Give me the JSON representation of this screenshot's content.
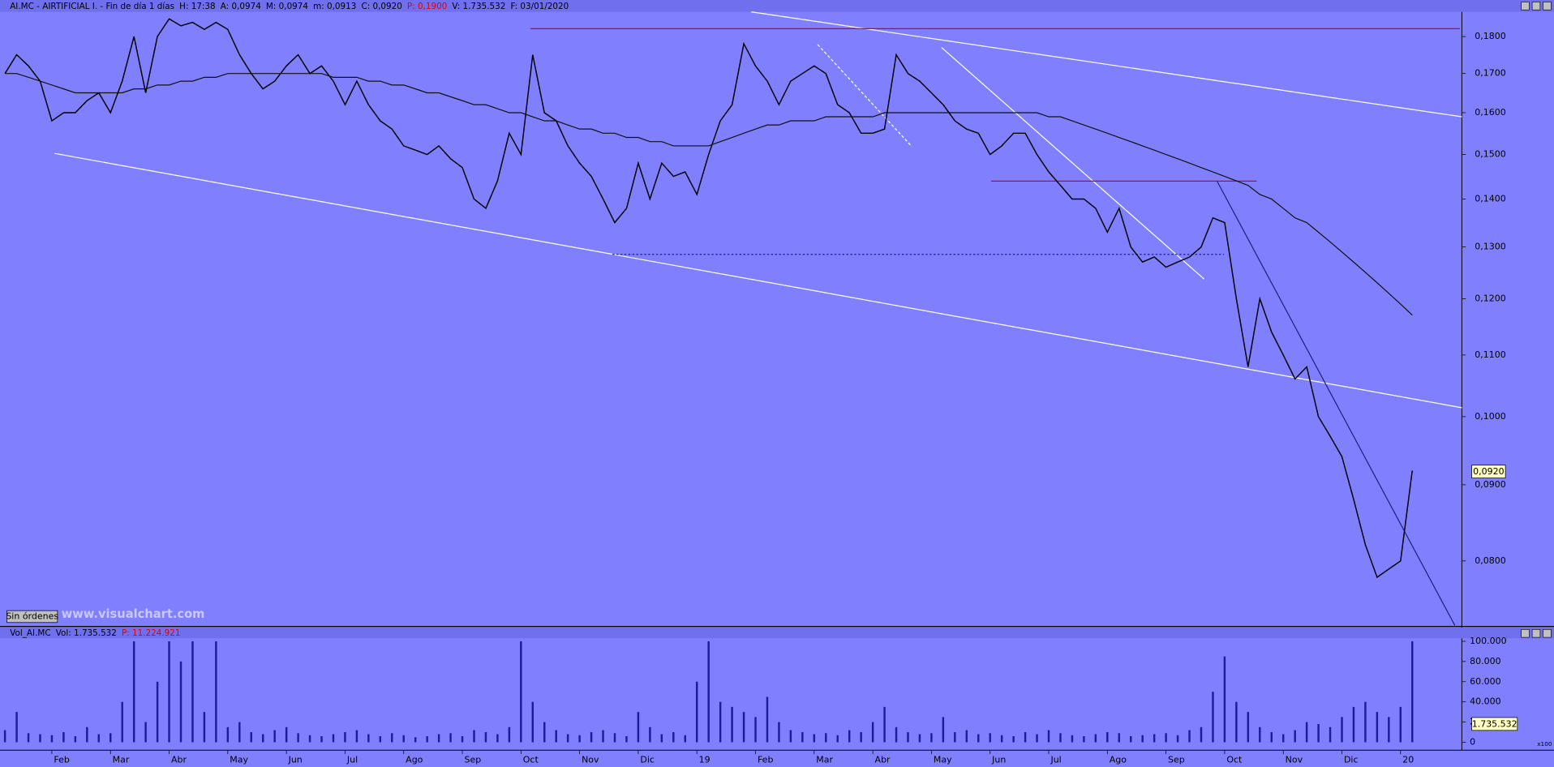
{
  "header": {
    "fields": [
      "AI.MC - AIRTIFICIAL I. - Fin de día 1 días",
      "H: 17:38",
      "A: 0,0974",
      "M: 0,0974",
      "m: 0,0913",
      "C: 0,0920",
      "P: 0,1900",
      "V: 1.735.532",
      "F: 03/01/2020"
    ],
    "last_price": "0,0920",
    "button": "Sin órdenes",
    "watermark": "www.visualchart.com"
  },
  "volume_header": {
    "fields": [
      "Vol_AI.MC",
      "Vol: 1.735.532",
      "P: 11.224.921"
    ],
    "last_volume": "1.735.532",
    "unit": "x100"
  },
  "chart_data": {
    "type": "line",
    "log_scale": true,
    "categories": [
      null,
      null,
      null,
      null,
      "Feb",
      null,
      null,
      null,
      null,
      "Mar",
      null,
      null,
      null,
      null,
      "Abr",
      null,
      null,
      null,
      null,
      "May",
      null,
      null,
      null,
      null,
      "Jun",
      null,
      null,
      null,
      null,
      "Jul",
      null,
      null,
      null,
      null,
      "Ago",
      null,
      null,
      null,
      null,
      "Sep",
      null,
      null,
      null,
      null,
      "Oct",
      null,
      null,
      null,
      null,
      "Nov",
      null,
      null,
      null,
      null,
      "Dic",
      null,
      null,
      null,
      null,
      "19",
      null,
      null,
      null,
      null,
      "Feb",
      null,
      null,
      null,
      null,
      "Mar",
      null,
      null,
      null,
      null,
      "Abr",
      null,
      null,
      null,
      null,
      "May",
      null,
      null,
      null,
      null,
      "Jun",
      null,
      null,
      null,
      null,
      "Jul",
      null,
      null,
      null,
      null,
      "Ago",
      null,
      null,
      null,
      null,
      "Sep",
      null,
      null,
      null,
      null,
      "Oct",
      null,
      null,
      null,
      null,
      "Nov",
      null,
      null,
      null,
      null,
      "Dic",
      null,
      null,
      null,
      null,
      "20",
      null
    ],
    "series": [
      {
        "color": "#000000",
        "values": [
          0.17,
          0.175,
          0.172,
          0.168,
          0.158,
          0.16,
          0.16,
          0.163,
          0.165,
          0.16,
          0.168,
          0.18,
          0.165,
          0.18,
          0.185,
          0.183,
          0.184,
          0.182,
          0.184,
          0.182,
          0.175,
          0.17,
          0.166,
          0.168,
          0.172,
          0.175,
          0.17,
          0.172,
          0.168,
          0.162,
          0.168,
          0.162,
          0.158,
          0.156,
          0.152,
          0.151,
          0.15,
          0.152,
          0.149,
          0.147,
          0.14,
          0.138,
          0.144,
          0.155,
          0.15,
          0.175,
          0.16,
          0.158,
          0.152,
          0.148,
          0.145,
          0.14,
          0.135,
          0.138,
          0.148,
          0.14,
          0.148,
          0.145,
          0.146,
          0.141,
          0.15,
          0.158,
          0.162,
          0.178,
          0.172,
          0.168,
          0.162,
          0.168,
          0.17,
          0.172,
          0.17,
          0.162,
          0.16,
          0.155,
          0.155,
          0.156,
          0.175,
          0.17,
          0.168,
          0.165,
          0.162,
          0.158,
          0.156,
          0.155,
          0.15,
          0.152,
          0.155,
          0.155,
          0.15,
          0.146,
          0.143,
          0.14,
          0.14,
          0.138,
          0.133,
          0.138,
          0.13,
          0.127,
          0.128,
          0.126,
          0.127,
          0.128,
          0.13,
          0.136,
          0.135,
          0.12,
          0.108,
          0.12,
          0.114,
          0.11,
          0.106,
          0.108,
          0.1,
          0.097,
          0.094,
          0.088,
          0.082,
          0.078,
          0.079,
          0.08,
          0.092
        ]
      },
      {
        "color": "#111111",
        "values": [
          0.17,
          0.17,
          0.169,
          0.168,
          0.167,
          0.166,
          0.165,
          0.165,
          0.165,
          0.165,
          0.165,
          0.166,
          0.166,
          0.167,
          0.167,
          0.168,
          0.168,
          0.169,
          0.169,
          0.17,
          0.17,
          0.17,
          0.17,
          0.17,
          0.17,
          0.17,
          0.17,
          0.17,
          0.169,
          0.169,
          0.169,
          0.168,
          0.168,
          0.167,
          0.167,
          0.166,
          0.165,
          0.165,
          0.164,
          0.163,
          0.162,
          0.162,
          0.161,
          0.16,
          0.16,
          0.159,
          0.158,
          0.158,
          0.157,
          0.156,
          0.156,
          0.155,
          0.155,
          0.154,
          0.154,
          0.153,
          0.153,
          0.152,
          0.152,
          0.152,
          0.152,
          0.153,
          0.154,
          0.155,
          0.156,
          0.157,
          0.157,
          0.158,
          0.158,
          0.158,
          0.159,
          0.159,
          0.159,
          0.159,
          0.159,
          0.16,
          0.16,
          0.16,
          0.16,
          0.16,
          0.16,
          0.16,
          0.16,
          0.16,
          0.16,
          0.16,
          0.16,
          0.16,
          0.16,
          0.159,
          0.159,
          0.158,
          0.157,
          0.156,
          0.155,
          0.154,
          0.153,
          0.152,
          0.151,
          0.15,
          0.149,
          0.148,
          0.147,
          0.146,
          0.145,
          0.144,
          0.143,
          0.141,
          0.14,
          0.138,
          0.136,
          0.135,
          0.133,
          0.131,
          0.129,
          0.127,
          0.125,
          0.123,
          0.121,
          0.119,
          0.117
        ]
      }
    ],
    "ylim": [
      0.0724,
      0.187
    ],
    "yticks": [
      {
        "value": 0.08,
        "label": "0,0800"
      },
      {
        "value": 0.09,
        "label": "0,0900"
      },
      {
        "value": 0.1,
        "label": "0,1000"
      },
      {
        "value": 0.11,
        "label": "0,1100"
      },
      {
        "value": 0.12,
        "label": "0,1200"
      },
      {
        "value": 0.13,
        "label": "0,1300"
      },
      {
        "value": 0.14,
        "label": "0,1400"
      },
      {
        "value": 0.15,
        "label": "0,1500"
      },
      {
        "value": 0.16,
        "label": "0,1600"
      },
      {
        "value": 0.17,
        "label": "0,1700"
      },
      {
        "value": 0.18,
        "label": "0,1800"
      }
    ],
    "volume": {
      "color": "#1c1c9c",
      "ylim": [
        0,
        100000
      ],
      "yticks": [
        0,
        {
          "value": 20000,
          "label": "20.000"
        },
        {
          "value": 40000,
          "label": "40.000"
        },
        {
          "value": 60000,
          "label": "60.000"
        },
        {
          "value": 80000,
          "label": "80.000"
        },
        {
          "value": 100000,
          "label": "100.000"
        }
      ],
      "values": [
        12000,
        30000,
        9000,
        8000,
        7000,
        10000,
        6000,
        15000,
        8000,
        9000,
        40000,
        100000,
        20000,
        60000,
        100000,
        80000,
        100000,
        30000,
        100000,
        15000,
        20000,
        10000,
        8000,
        12000,
        15000,
        9000,
        7000,
        6000,
        8000,
        10000,
        12000,
        8000,
        6000,
        9000,
        7000,
        5000,
        6000,
        8000,
        9000,
        6000,
        12000,
        10000,
        8000,
        15000,
        100000,
        40000,
        20000,
        12000,
        8000,
        7000,
        10000,
        12000,
        9000,
        6000,
        30000,
        15000,
        8000,
        10000,
        7000,
        60000,
        100000,
        40000,
        35000,
        30000,
        25000,
        45000,
        20000,
        12000,
        10000,
        8000,
        9000,
        7000,
        12000,
        10000,
        20000,
        35000,
        15000,
        10000,
        8000,
        9000,
        25000,
        10000,
        12000,
        8000,
        9000,
        7000,
        6000,
        10000,
        8000,
        12000,
        9000,
        7000,
        6000,
        8000,
        10000,
        9000,
        6000,
        7000,
        8000,
        9000,
        7000,
        12000,
        15000,
        50000,
        85000,
        40000,
        30000,
        15000,
        10000,
        8000,
        12000,
        20000,
        18000,
        15000,
        25000,
        35000,
        40000,
        30000,
        25000,
        35000,
        100000
      ]
    }
  }
}
